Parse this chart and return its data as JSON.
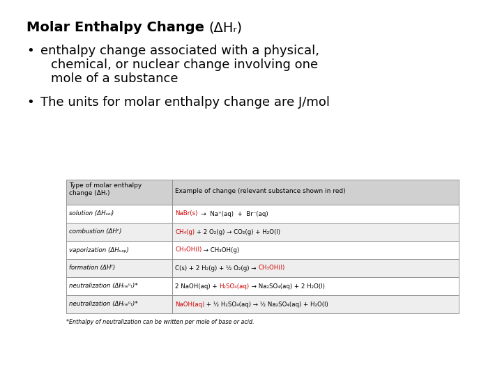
{
  "bg_color": "#ffffff",
  "text_color": "#000000",
  "header_bg": "#d0d0d0",
  "row_bg_even": "#ffffff",
  "row_bg_odd": "#eeeeee",
  "table_border": "#888888",
  "red_color": "#cc0000",
  "title_bold": "Molar Enthalpy Change ",
  "title_rest": "(ΔHᵣ)",
  "bullet1_lines": [
    "enthalpy change associated with a physical,",
    "chemical, or nuclear change involving one",
    "mole of a substance"
  ],
  "bullet2": "The units for molar enthalpy change are J/mol",
  "header_col1": "Type of molar enthalpy\nchange (ΔHᵣ)",
  "header_col2": "Example of change (relevant substance shown in red)",
  "rows": [
    {
      "col1": "solution (ΔHₛₒₗ)",
      "pre": "",
      "red": "NaBr(s)",
      "post": "  →  Na⁺(aq)  +  Br⁻(aq)"
    },
    {
      "col1": "combustion (ΔHᶜ)",
      "pre": "",
      "red": "CH₄(g)",
      "post": " + 2 O₂(g) → CO₂(g) + H₂O(l)"
    },
    {
      "col1": "vaporization (ΔHᵥₐₚ)",
      "pre": "",
      "red": "CH₃OH(l)",
      "post": " → CH₃OH(g)"
    },
    {
      "col1": "formation (ΔHᶠ)",
      "pre": "C(s) + 2 H₂(g) + ½ O₂(g) → ",
      "red": "CH₃OH(l)",
      "post": ""
    },
    {
      "col1": "neutralization (ΔHₙₑᵘₜ)*",
      "pre": "2 NaOH(aq) + ",
      "red": "H₂SO₄(aq)",
      "post": " → Na₂SO₄(aq) + 2 H₂O(l)"
    },
    {
      "col1": "neutralization (ΔHₙₑᵘₜ)*",
      "pre": "",
      "red": "NaOH(aq)",
      "post": " + ½ H₂SO₄(aq) → ½ Na₂SO₄(aq) + H₂O(l)"
    }
  ],
  "footnote": "*Enthalpy of neutralization can be written per mole of base or acid.",
  "font_size_title": 14,
  "font_size_bullet": 13,
  "font_size_table_header": 6.5,
  "font_size_table_body": 6.2,
  "font_size_footnote": 5.8
}
